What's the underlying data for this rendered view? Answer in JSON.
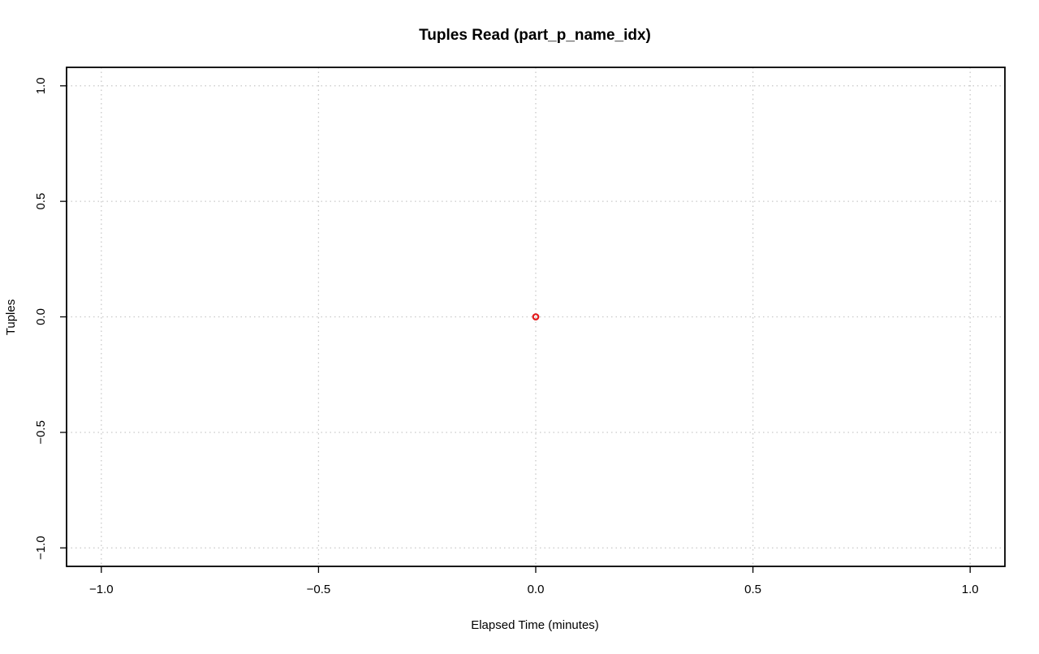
{
  "chart_data": {
    "type": "scatter",
    "title": "Tuples Read (part_p_name_idx)",
    "xlabel": "Elapsed Time (minutes)",
    "ylabel": "Tuples",
    "xlim": [
      -1.08,
      1.08
    ],
    "ylim": [
      -1.08,
      1.08
    ],
    "x_ticks": [
      -1.0,
      -0.5,
      0.0,
      0.5,
      1.0
    ],
    "x_tick_labels": [
      "−1.0",
      "−0.5",
      "0.0",
      "0.5",
      "1.0"
    ],
    "y_ticks": [
      -1.0,
      -0.5,
      0.0,
      0.5,
      1.0
    ],
    "y_tick_labels": [
      "−1.0",
      "−0.5",
      "0.0",
      "0.5",
      "1.0"
    ],
    "grid": true,
    "series": [
      {
        "x": [
          0.0
        ],
        "y": [
          0.0
        ],
        "color": "#e31a1c",
        "marker": "open-circle"
      }
    ]
  }
}
